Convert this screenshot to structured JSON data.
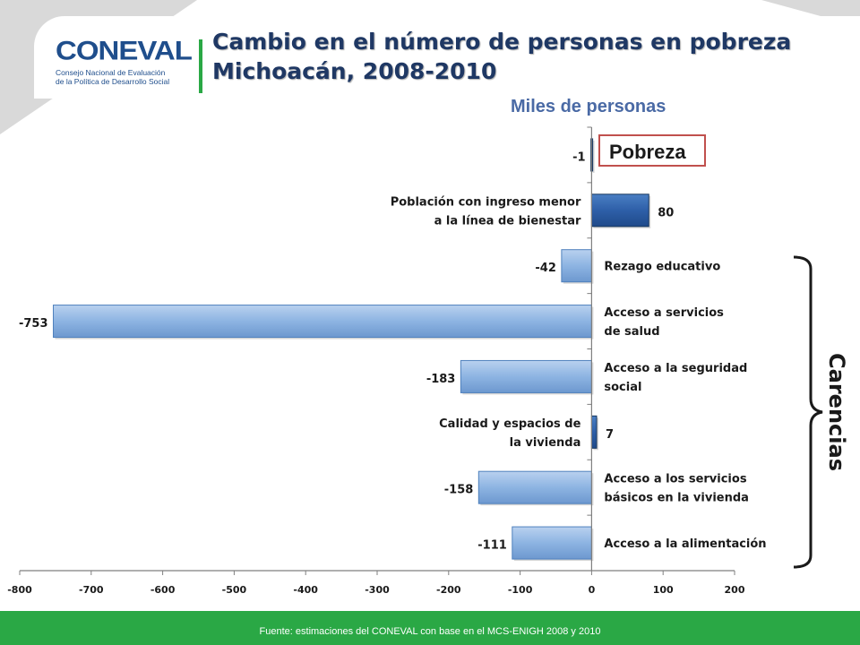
{
  "header": {
    "logo_text": "CONEVAL",
    "logo_sub_1": "Consejo Nacional de Evaluación",
    "logo_sub_2": "de la Política de Desarrollo Social",
    "title_line1": "Cambio en el número de personas en pobreza",
    "title_line2": "Michoacán, 2008-2010"
  },
  "units_label": "Miles de personas",
  "pobreza_label": "Pobreza",
  "carencias_label": "Carencias",
  "footer": {
    "source": "Fuente: estimaciones del CONEVAL con base en el MCS-ENIGH 2008 y 2010"
  },
  "colors": {
    "bar_light": "#8db4e2",
    "bar_dark": "#2e5fa8",
    "green": "#2aa845",
    "title": "#1f3864"
  },
  "chart_data": {
    "type": "bar",
    "orientation": "horizontal",
    "categories": [
      "Pobreza",
      "Población con ingreso menor a la línea de bienestar",
      "Rezago educativo",
      "Acceso a servicios de salud",
      "Acceso a la seguridad social",
      "Calidad y espacios de la vivienda",
      "Acceso a los servicios básicos en la vivienda",
      "Acceso a la alimentación"
    ],
    "values": [
      -1,
      80,
      -42,
      -753,
      -183,
      7,
      -158,
      -111
    ],
    "data_labels": [
      "-1",
      "80",
      "-42",
      "-753",
      "-183",
      "7",
      "-158",
      "-111"
    ],
    "bar_colors": [
      "dark",
      "dark",
      "light",
      "light",
      "light",
      "dark",
      "light",
      "light"
    ],
    "category_lines": [
      [],
      [
        "Población con ingreso menor",
        "a la línea de bienestar"
      ],
      [
        "Rezago educativo"
      ],
      [
        "Acceso a servicios",
        " de salud"
      ],
      [
        "Acceso a  la seguridad",
        "social"
      ],
      [
        "Calidad y espacios de",
        "la vivienda"
      ],
      [
        "Acceso a los servicios",
        "básicos en la vivienda"
      ],
      [
        "Acceso a la alimentación"
      ]
    ],
    "label_side": [
      "none",
      "left",
      "right",
      "right",
      "right",
      "left",
      "right",
      "right"
    ],
    "xlim": [
      -800,
      200
    ],
    "xticks": [
      -800,
      -700,
      -600,
      -500,
      -400,
      -300,
      -200,
      -100,
      0,
      100,
      200
    ],
    "grid": false,
    "legend": "none"
  }
}
